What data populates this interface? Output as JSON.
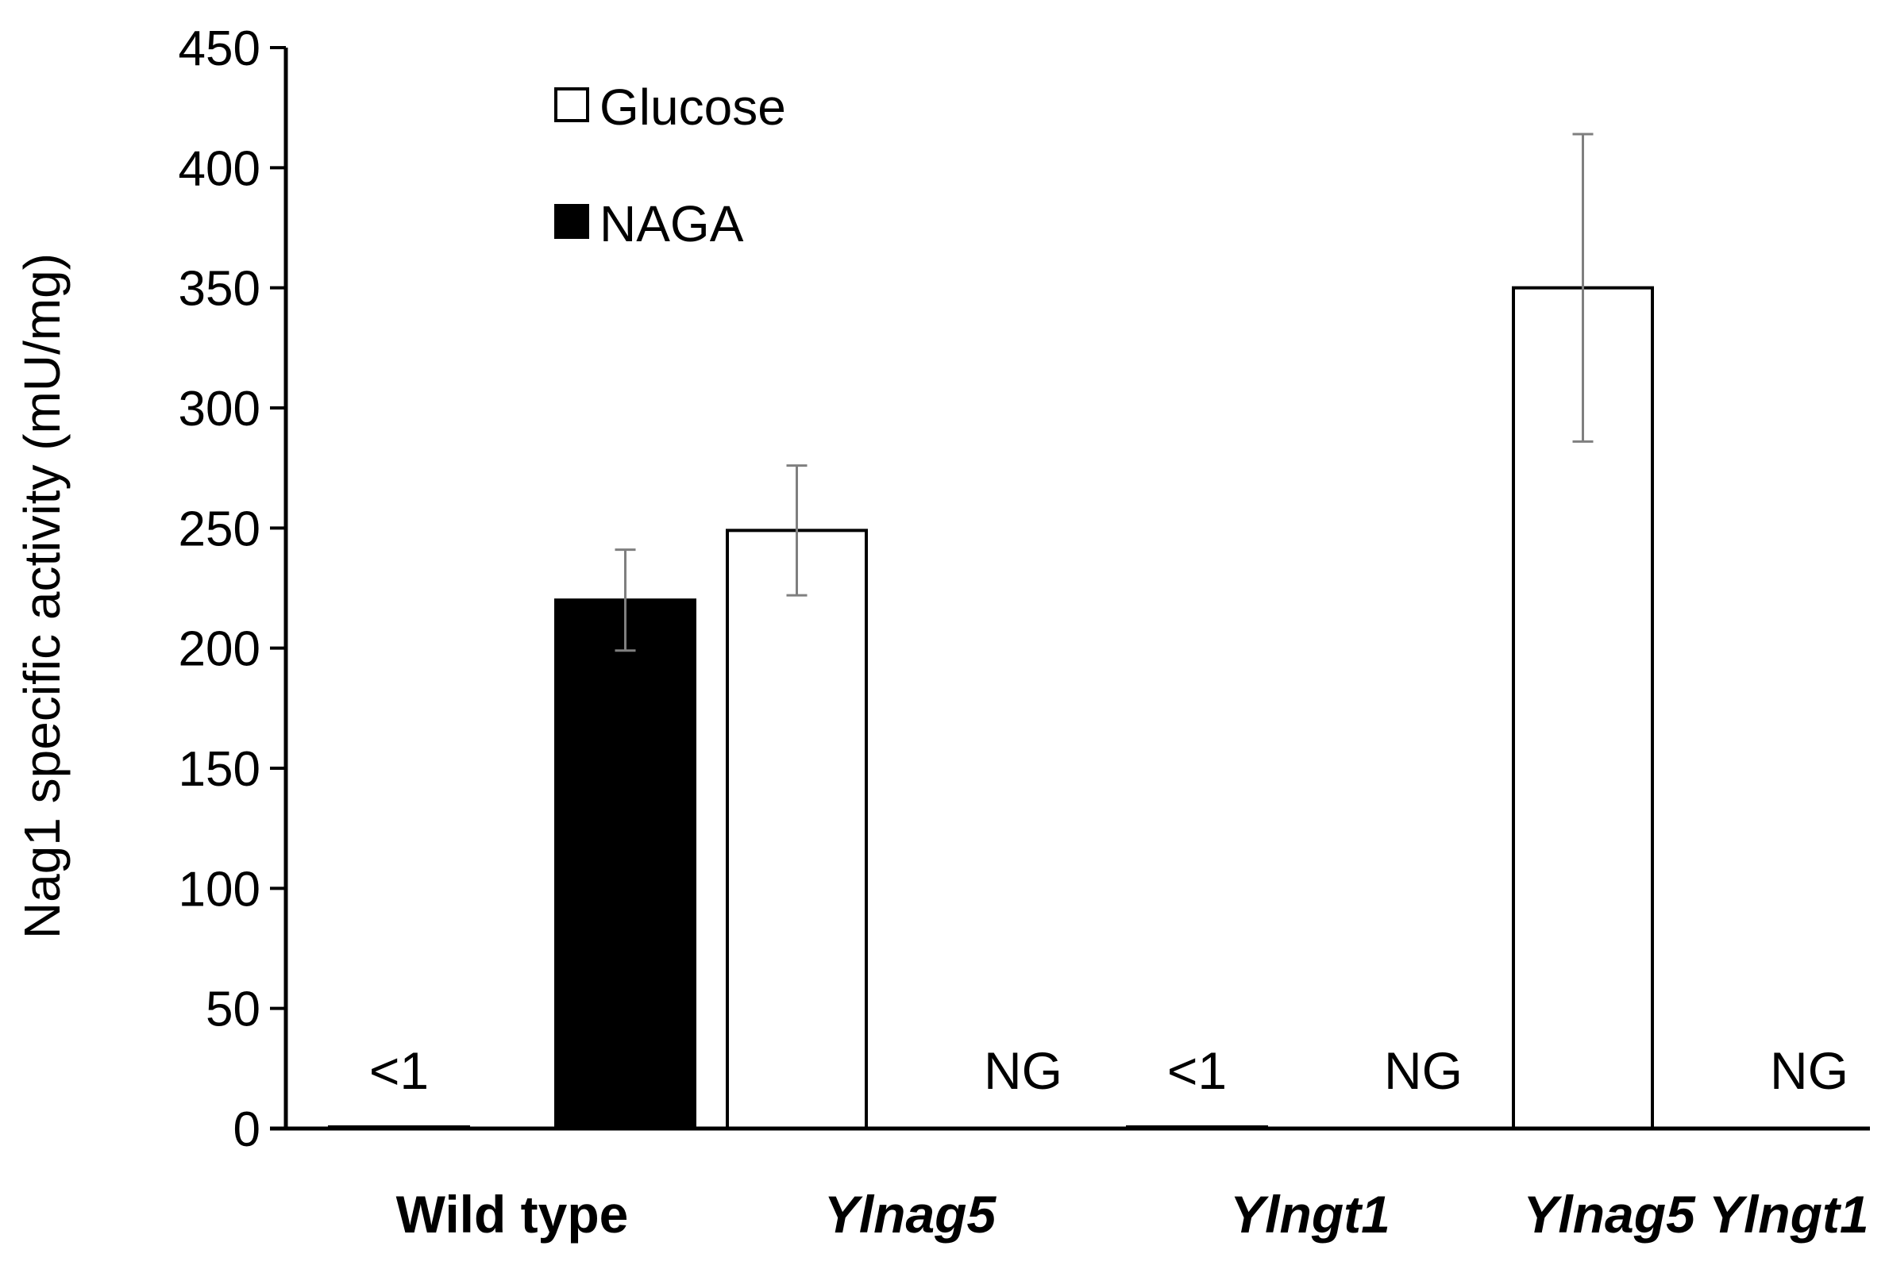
{
  "chart_data": {
    "type": "bar",
    "title": "",
    "xlabel": "",
    "ylabel": "Nag1 specific activity (mU/mg)",
    "ylim": [
      0,
      450
    ],
    "yticks": [
      0,
      50,
      100,
      150,
      200,
      250,
      300,
      350,
      400,
      450
    ],
    "categories": [
      {
        "label": "Wild type",
        "italic": false
      },
      {
        "label": "Ylnag5",
        "italic": true
      },
      {
        "label": "Ylngt1",
        "italic": true
      },
      {
        "label": "Ylnag5 Ylngt1",
        "italic": true
      }
    ],
    "series": [
      {
        "name": "Glucose",
        "color": "#ffffff",
        "values": [
          0.5,
          249,
          0.5,
          350
        ],
        "errors": [
          null,
          27,
          null,
          64
        ],
        "annotations": [
          "<1",
          null,
          "<1",
          null
        ]
      },
      {
        "name": "NAGA",
        "color": "#000000",
        "values": [
          220,
          null,
          null,
          null
        ],
        "errors": [
          21,
          null,
          null,
          null
        ],
        "annotations": [
          null,
          "NG",
          "NG",
          "NG"
        ]
      }
    ],
    "legend": {
      "position": "top-left",
      "entries": [
        "Glucose",
        "NAGA"
      ]
    },
    "grid": false
  }
}
